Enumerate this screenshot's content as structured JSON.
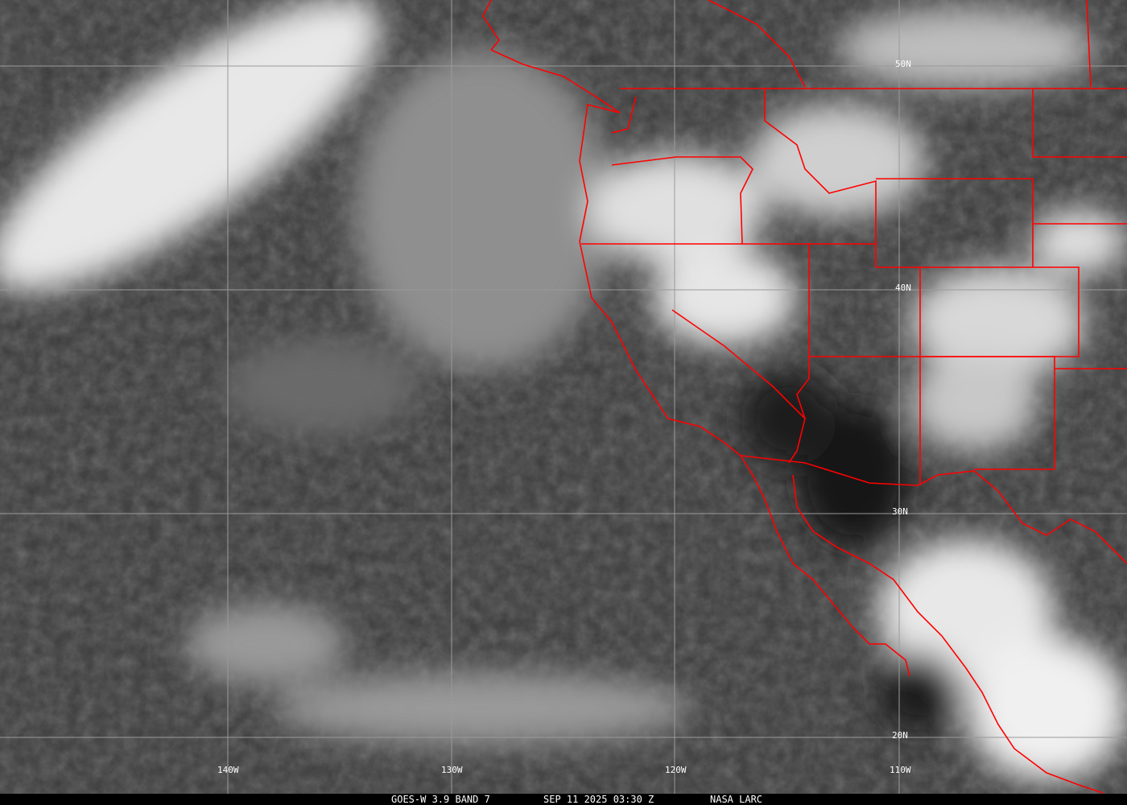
{
  "image": {
    "type": "satellite infrared imagery with map overlay",
    "grid_labels": {
      "longitude": [
        "140W",
        "130W",
        "120W",
        "110W"
      ],
      "latitude": [
        "50N",
        "40N",
        "30N",
        "20N"
      ]
    },
    "colors": {
      "borders": "#ff0000",
      "grid": "#9a9a9a",
      "caption_bar": "#000000"
    }
  },
  "caption": {
    "satellite": "GOES-W 3.9 BAND 7",
    "datetime": "SEP 11 2025 03:30 Z",
    "source": "NASA LARC"
  }
}
